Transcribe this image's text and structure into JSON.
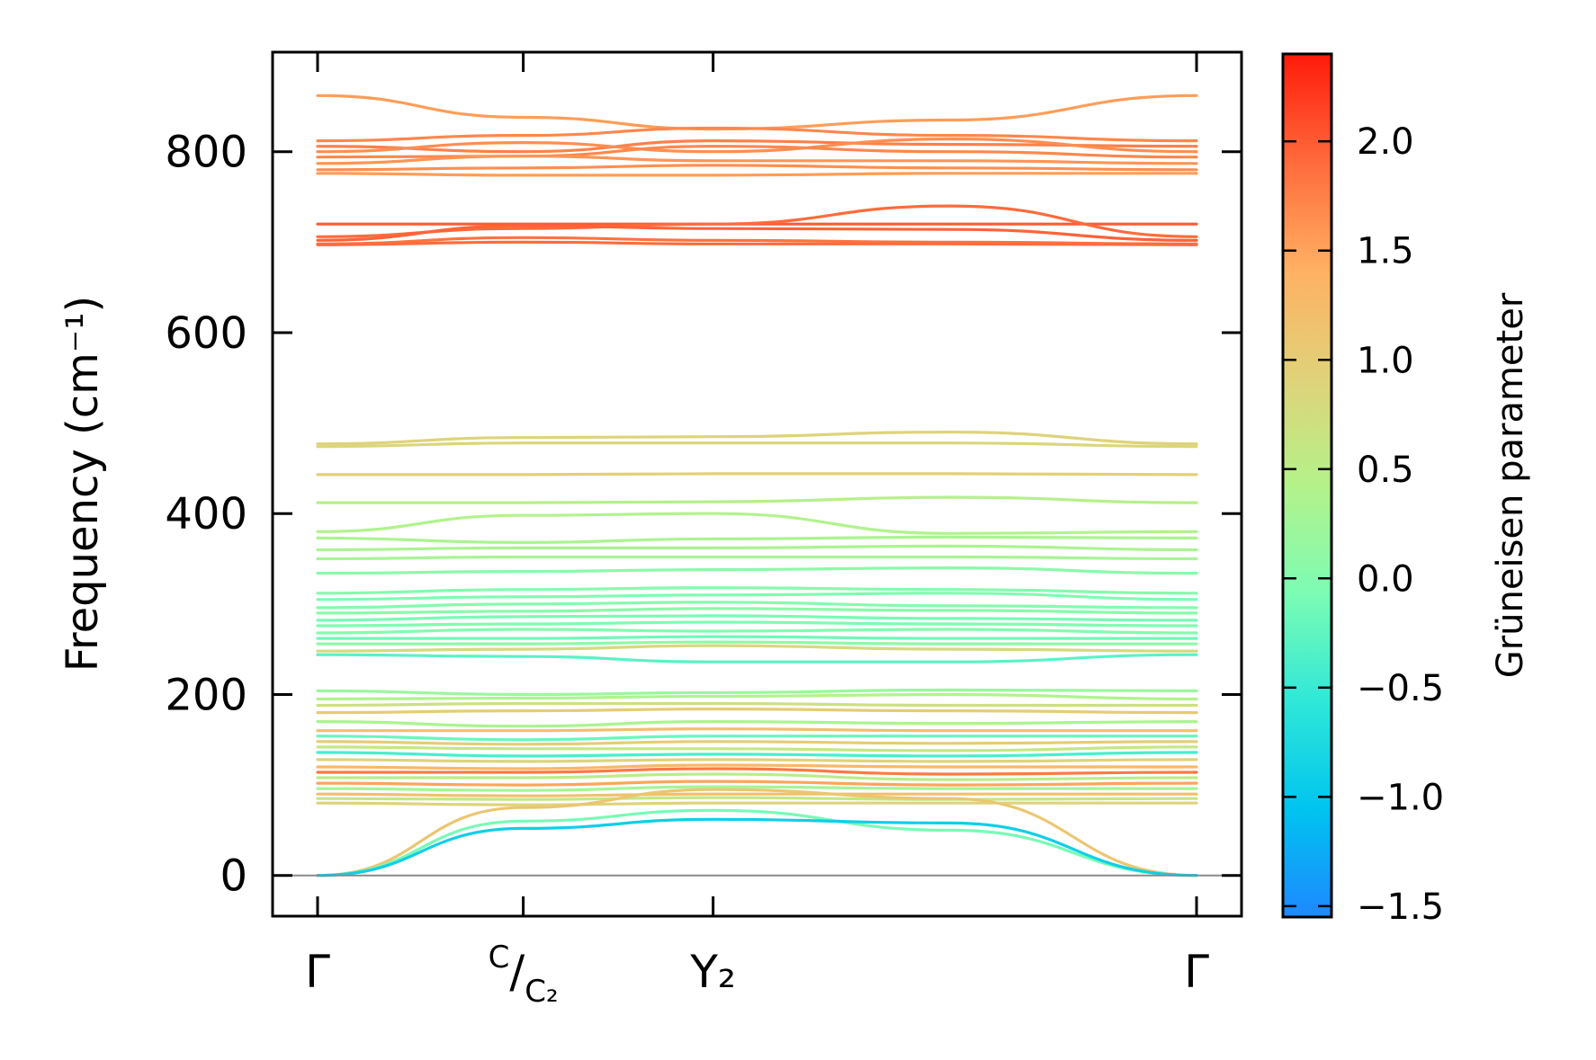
{
  "chart_data": {
    "type": "line",
    "title": "",
    "xlabel": "",
    "ylabel": "Frequency (cm⁻¹)",
    "ylim": [
      -45,
      910
    ],
    "yticks": [
      0,
      200,
      400,
      600,
      800
    ],
    "x_path": [
      "Γ",
      "C/C₂",
      "Y₂",
      "Γ"
    ],
    "x_path_positions": [
      0,
      0.234,
      0.45,
      1.0
    ],
    "grid": false,
    "colorbar": {
      "label": "Grüneisen parameter",
      "range": [
        -1.55,
        2.4
      ],
      "ticks": [
        -1.5,
        -1.0,
        -0.5,
        0.0,
        0.5,
        1.0,
        1.5,
        2.0
      ],
      "tick_labels": [
        "−1.5",
        "−1.0",
        "−0.5",
        "0.0",
        "0.5",
        "1.0",
        "1.5",
        "2.0"
      ],
      "colormap": "rainbow"
    },
    "series": [
      {
        "freq": [
          862,
          838,
          825,
          835,
          862
        ],
        "g": 1.55
      },
      {
        "freq": [
          812,
          818,
          826,
          818,
          812
        ],
        "g": 1.7
      },
      {
        "freq": [
          806,
          800,
          812,
          808,
          806
        ],
        "g": 1.75
      },
      {
        "freq": [
          800,
          810,
          800,
          814,
          800
        ],
        "g": 1.65
      },
      {
        "freq": [
          794,
          795,
          806,
          800,
          794
        ],
        "g": 1.7
      },
      {
        "freq": [
          787,
          795,
          790,
          790,
          787
        ],
        "g": 1.6
      },
      {
        "freq": [
          780,
          782,
          785,
          782,
          780
        ],
        "g": 1.65
      },
      {
        "freq": [
          776,
          774,
          774,
          776,
          776
        ],
        "g": 1.55
      },
      {
        "freq": [
          720,
          720,
          720,
          720,
          720
        ],
        "g": 2.0
      },
      {
        "freq": [
          706,
          715,
          720,
          740,
          706
        ],
        "g": 1.9
      },
      {
        "freq": [
          702,
          718,
          715,
          714,
          702
        ],
        "g": 1.95
      },
      {
        "freq": [
          698,
          705,
          702,
          700,
          698
        ],
        "g": 1.85
      },
      {
        "freq": [
          697,
          700,
          698,
          698,
          697
        ],
        "g": 1.9
      },
      {
        "freq": [
          477,
          484,
          485,
          490,
          477
        ],
        "g": 0.9
      },
      {
        "freq": [
          474,
          478,
          478,
          478,
          474
        ],
        "g": 0.85
      },
      {
        "freq": [
          443,
          443,
          444,
          444,
          443
        ],
        "g": 0.95
      },
      {
        "freq": [
          412,
          412,
          413,
          418,
          412
        ],
        "g": 0.45
      },
      {
        "freq": [
          380,
          398,
          400,
          378,
          380
        ],
        "g": 0.4
      },
      {
        "freq": [
          373,
          368,
          372,
          374,
          373
        ],
        "g": 0.35
      },
      {
        "freq": [
          360,
          362,
          362,
          364,
          360
        ],
        "g": 0.35
      },
      {
        "freq": [
          350,
          352,
          352,
          352,
          350
        ],
        "g": 0.3
      },
      {
        "freq": [
          334,
          336,
          338,
          340,
          334
        ],
        "g": 0.05
      },
      {
        "freq": [
          312,
          316,
          318,
          316,
          312
        ],
        "g": 0.0
      },
      {
        "freq": [
          305,
          308,
          310,
          312,
          305
        ],
        "g": -0.05
      },
      {
        "freq": [
          296,
          300,
          302,
          298,
          296
        ],
        "g": 0.0
      },
      {
        "freq": [
          290,
          292,
          295,
          293,
          290
        ],
        "g": 0.05
      },
      {
        "freq": [
          282,
          286,
          287,
          284,
          282
        ],
        "g": -0.1
      },
      {
        "freq": [
          276,
          278,
          280,
          278,
          276
        ],
        "g": -0.05
      },
      {
        "freq": [
          268,
          272,
          270,
          272,
          268
        ],
        "g": 0.0
      },
      {
        "freq": [
          262,
          262,
          264,
          262,
          262
        ],
        "g": -0.15
      },
      {
        "freq": [
          256,
          256,
          258,
          256,
          256
        ],
        "g": 0.1
      },
      {
        "freq": [
          248,
          250,
          254,
          250,
          248
        ],
        "g": 0.8
      },
      {
        "freq": [
          244,
          242,
          236,
          236,
          244
        ],
        "g": -0.3
      },
      {
        "freq": [
          204,
          200,
          202,
          205,
          204
        ],
        "g": 0.2
      },
      {
        "freq": [
          195,
          196,
          198,
          200,
          195
        ],
        "g": 0.4
      },
      {
        "freq": [
          188,
          190,
          190,
          188,
          188
        ],
        "g": 0.7
      },
      {
        "freq": [
          180,
          182,
          184,
          182,
          180
        ],
        "g": 1.0
      },
      {
        "freq": [
          170,
          165,
          170,
          168,
          170
        ],
        "g": 0.35
      },
      {
        "freq": [
          160,
          160,
          162,
          160,
          160
        ],
        "g": 1.2
      },
      {
        "freq": [
          154,
          150,
          154,
          154,
          154
        ],
        "g": -0.2
      },
      {
        "freq": [
          148,
          145,
          148,
          146,
          148
        ],
        "g": 1.0
      },
      {
        "freq": [
          142,
          140,
          140,
          138,
          142
        ],
        "g": 0.6
      },
      {
        "freq": [
          136,
          132,
          134,
          132,
          136
        ],
        "g": -0.4
      },
      {
        "freq": [
          128,
          126,
          128,
          126,
          128
        ],
        "g": 0.9
      },
      {
        "freq": [
          120,
          118,
          122,
          120,
          120
        ],
        "g": 1.3
      },
      {
        "freq": [
          114,
          114,
          118,
          112,
          114
        ],
        "g": 1.8
      },
      {
        "freq": [
          108,
          108,
          112,
          106,
          108
        ],
        "g": 0.5
      },
      {
        "freq": [
          102,
          100,
          104,
          100,
          102
        ],
        "g": 1.5
      },
      {
        "freq": [
          96,
          94,
          98,
          96,
          96
        ],
        "g": 0.3
      },
      {
        "freq": [
          90,
          88,
          90,
          90,
          90
        ],
        "g": 1.2
      },
      {
        "freq": [
          85,
          84,
          86,
          84,
          85
        ],
        "g": 0.6
      },
      {
        "freq": [
          80,
          78,
          80,
          80,
          80
        ],
        "g": 0.9
      },
      {
        "freq": [
          0,
          75,
          95,
          85,
          0
        ],
        "g": 1.1
      },
      {
        "freq": [
          0,
          60,
          72,
          50,
          0
        ],
        "g": -0.1
      },
      {
        "freq": [
          0,
          52,
          62,
          58,
          0
        ],
        "g": -0.9
      }
    ]
  }
}
